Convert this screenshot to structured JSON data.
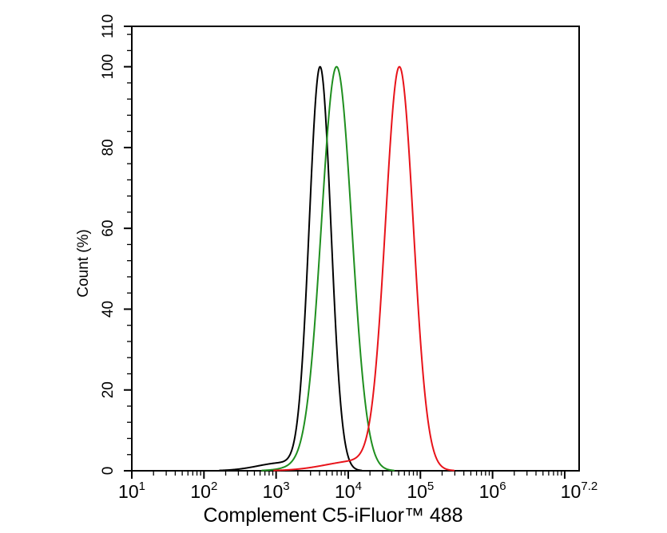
{
  "chart_data": {
    "type": "line",
    "subtype": "flow-cytometry-histogram-overlay",
    "title": "",
    "xlabel": "Complement C5-iFluor™ 488",
    "ylabel": "Count  (%)",
    "x_scale": "log10",
    "x_log_range": [
      1,
      7.2
    ],
    "x_major_ticks_log": [
      1,
      2,
      3,
      4,
      5,
      6,
      7
    ],
    "x_tick_labels": [
      {
        "log": 1,
        "base": "10",
        "exp": "1"
      },
      {
        "log": 2,
        "base": "10",
        "exp": "2"
      },
      {
        "log": 3,
        "base": "10",
        "exp": "3"
      },
      {
        "log": 4,
        "base": "10",
        "exp": "4"
      },
      {
        "log": 5,
        "base": "10",
        "exp": "5"
      },
      {
        "log": 6,
        "base": "10",
        "exp": "6"
      },
      {
        "log": 7.2,
        "base": "10",
        "exp": "7.2"
      }
    ],
    "y_range": [
      0,
      110
    ],
    "y_major_ticks": [
      0,
      20,
      40,
      60,
      80,
      100,
      110
    ],
    "y_minor_step": 4,
    "grid": false,
    "legend": null,
    "frame": true,
    "axis_color": "#000000",
    "series": [
      {
        "name": "black",
        "color": "#000000",
        "peak_percent": 100,
        "peak_log": 3.61,
        "peak_value_approx": 4100,
        "sigma_log": 0.15,
        "tail": {
          "amp": 0.02,
          "center_log": 3.1,
          "sigma_log": 0.35
        }
      },
      {
        "name": "green",
        "color": "#1f8f1f",
        "peak_percent": 100,
        "peak_log": 3.84,
        "peak_value_approx": 6900,
        "sigma_log": 0.21,
        "tail": {
          "amp": 0.018,
          "center_log": 3.5,
          "sigma_log": 0.28
        }
      },
      {
        "name": "red",
        "color": "#e8131a",
        "peak_percent": 100,
        "peak_log": 4.71,
        "peak_value_approx": 51000,
        "sigma_log": 0.193,
        "tail": {
          "amp": 0.025,
          "center_log": 4.15,
          "sigma_log": 0.45
        }
      }
    ]
  }
}
